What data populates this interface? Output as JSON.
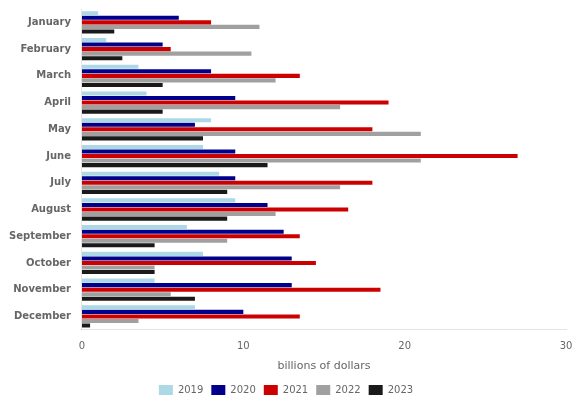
{
  "chart_data": {
    "type": "bar",
    "orientation": "horizontal",
    "categories": [
      "January",
      "February",
      "March",
      "April",
      "May",
      "June",
      "July",
      "August",
      "September",
      "October",
      "November",
      "December"
    ],
    "series": [
      {
        "name": "2019",
        "color": "#add8e6",
        "values": [
          1.0,
          1.5,
          3.5,
          4.0,
          8.0,
          7.5,
          8.5,
          9.5,
          6.5,
          7.5,
          4.5,
          7.0
        ]
      },
      {
        "name": "2020",
        "color": "#00008b",
        "values": [
          6.0,
          5.0,
          8.0,
          9.5,
          7.0,
          9.5,
          9.5,
          11.5,
          12.5,
          13.0,
          13.0,
          10.0
        ]
      },
      {
        "name": "2021",
        "color": "#cc0000",
        "values": [
          8.0,
          5.5,
          13.5,
          19.0,
          18.0,
          27.0,
          18.0,
          16.5,
          13.5,
          14.5,
          18.5,
          13.5
        ]
      },
      {
        "name": "2022",
        "color": "#a0a0a0",
        "values": [
          11.0,
          10.5,
          12.0,
          16.0,
          21.0,
          21.0,
          16.0,
          12.0,
          9.0,
          4.5,
          5.5,
          3.5
        ]
      },
      {
        "name": "2023",
        "color": "#1a1a1a",
        "values": [
          2.0,
          2.5,
          5.0,
          5.0,
          7.5,
          11.5,
          9.0,
          9.0,
          4.5,
          4.5,
          7.0,
          0.5
        ]
      }
    ],
    "xlabel": "billions of dollars",
    "xlim": [
      0,
      30
    ],
    "xticks": [
      0,
      10,
      20,
      30
    ],
    "grid": false,
    "legend": "bottom"
  }
}
